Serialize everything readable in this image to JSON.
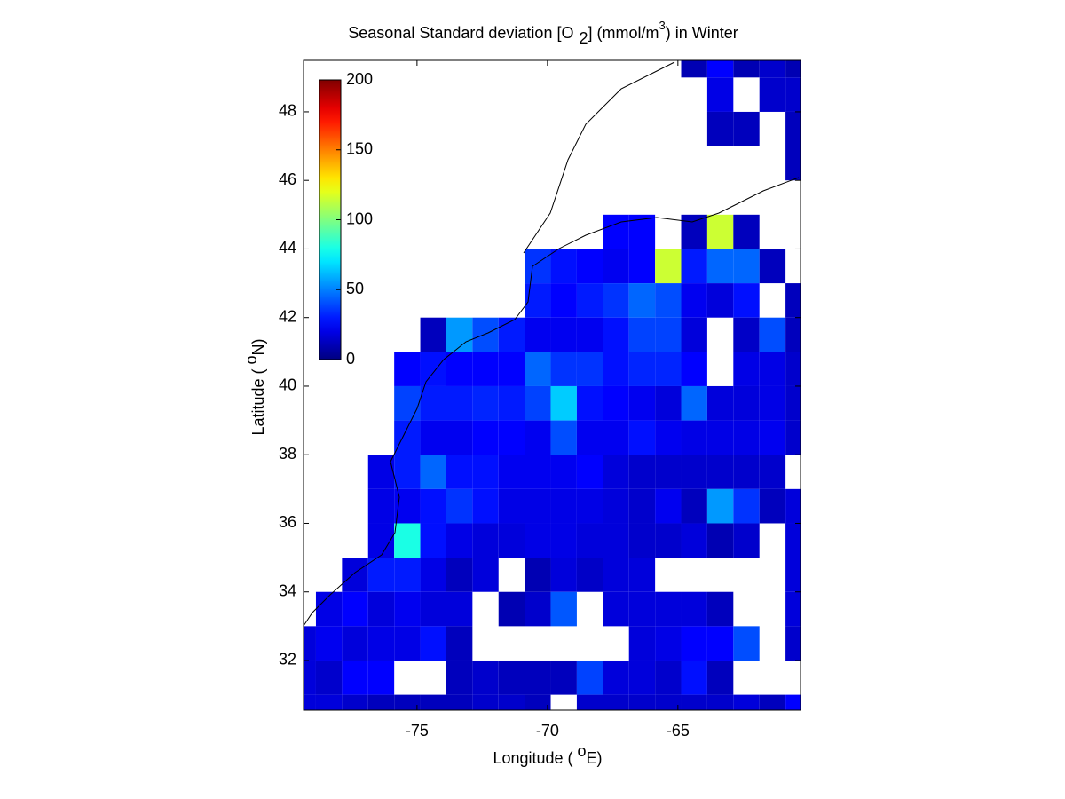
{
  "chart_data": {
    "type": "heatmap",
    "title": [
      "Seasonal Standard deviation [O",
      "2",
      "] (mmol/m",
      "3",
      ") in  Winter"
    ],
    "xlabel": [
      "Longitude ( ",
      "o",
      "E)"
    ],
    "ylabel": [
      "Latitude ( ",
      "o",
      "N)"
    ],
    "colormap": "jet",
    "x": [
      -79.375,
      -78.375,
      -77.375,
      -76.375,
      -75.375,
      -74.375,
      -73.375,
      -72.375,
      -71.375,
      -70.375,
      -69.375,
      -68.375,
      -67.375,
      -66.375,
      -65.375,
      -64.375,
      -63.375,
      -62.375,
      -61.375,
      -60.375
    ],
    "y": [
      49.5,
      48.5,
      47.5,
      46.5,
      45.5,
      44.5,
      43.5,
      42.5,
      41.5,
      40.5,
      39.5,
      38.5,
      37.5,
      36.5,
      35.5,
      34.5,
      33.5,
      32.5,
      31.5,
      30.5
    ],
    "values": [
      [
        null,
        null,
        null,
        null,
        null,
        null,
        null,
        null,
        null,
        null,
        null,
        null,
        null,
        null,
        null,
        10,
        25,
        10,
        15,
        10
      ],
      [
        null,
        null,
        null,
        null,
        null,
        null,
        null,
        null,
        null,
        null,
        null,
        null,
        null,
        null,
        null,
        null,
        20,
        null,
        15,
        15
      ],
      [
        null,
        null,
        null,
        null,
        null,
        null,
        null,
        null,
        null,
        null,
        null,
        null,
        null,
        null,
        null,
        null,
        12,
        12,
        null,
        12
      ],
      [
        null,
        null,
        null,
        null,
        null,
        null,
        null,
        null,
        null,
        null,
        null,
        null,
        null,
        null,
        null,
        null,
        null,
        null,
        null,
        12
      ],
      [
        null,
        null,
        null,
        null,
        null,
        null,
        null,
        null,
        null,
        null,
        null,
        null,
        null,
        null,
        null,
        null,
        null,
        null,
        null,
        null
      ],
      [
        null,
        null,
        null,
        null,
        null,
        null,
        null,
        null,
        null,
        null,
        null,
        null,
        25,
        25,
        null,
        12,
        115,
        12,
        null,
        null
      ],
      [
        null,
        null,
        null,
        null,
        null,
        null,
        null,
        null,
        null,
        35,
        28,
        25,
        22,
        25,
        115,
        30,
        45,
        45,
        12,
        null
      ],
      [
        null,
        null,
        null,
        null,
        null,
        null,
        null,
        null,
        null,
        30,
        25,
        30,
        35,
        45,
        40,
        22,
        18,
        28,
        null,
        12
      ],
      [
        null,
        null,
        null,
        null,
        null,
        12,
        55,
        40,
        30,
        22,
        22,
        22,
        28,
        38,
        38,
        18,
        null,
        14,
        40,
        12
      ],
      [
        null,
        null,
        null,
        null,
        25,
        28,
        25,
        25,
        25,
        45,
        35,
        35,
        28,
        32,
        32,
        25,
        null,
        20,
        20,
        15
      ],
      [
        null,
        null,
        null,
        null,
        38,
        30,
        30,
        32,
        30,
        38,
        65,
        28,
        25,
        22,
        18,
        45,
        18,
        18,
        20,
        15
      ],
      [
        null,
        null,
        null,
        null,
        30,
        22,
        22,
        25,
        25,
        22,
        40,
        22,
        22,
        28,
        22,
        20,
        20,
        20,
        22,
        15
      ],
      [
        null,
        null,
        null,
        20,
        30,
        45,
        28,
        28,
        22,
        22,
        22,
        25,
        18,
        15,
        15,
        15,
        15,
        15,
        15,
        null
      ],
      [
        null,
        null,
        null,
        20,
        22,
        28,
        35,
        28,
        20,
        20,
        20,
        20,
        18,
        15,
        22,
        12,
        55,
        35,
        12,
        18
      ],
      [
        null,
        null,
        null,
        20,
        80,
        28,
        20,
        18,
        18,
        20,
        20,
        18,
        18,
        15,
        15,
        18,
        10,
        15,
        null,
        18
      ],
      [
        null,
        null,
        18,
        30,
        30,
        20,
        12,
        18,
        null,
        10,
        18,
        14,
        18,
        18,
        null,
        null,
        null,
        null,
        null,
        18
      ],
      [
        null,
        20,
        25,
        18,
        22,
        18,
        18,
        null,
        10,
        15,
        42,
        null,
        18,
        18,
        18,
        18,
        12,
        null,
        null,
        18
      ],
      [
        18,
        22,
        18,
        20,
        20,
        28,
        12,
        null,
        null,
        null,
        null,
        null,
        null,
        18,
        20,
        25,
        25,
        40,
        null,
        15
      ],
      [
        18,
        15,
        25,
        25,
        null,
        null,
        12,
        15,
        12,
        12,
        12,
        38,
        18,
        18,
        15,
        28,
        12,
        null,
        null,
        null
      ],
      [
        18,
        18,
        15,
        12,
        12,
        12,
        12,
        15,
        15,
        12,
        null,
        15,
        15,
        15,
        15,
        15,
        15,
        18,
        12,
        25
      ]
    ],
    "xlim": [
      -79.35,
      -60.3
    ],
    "ylim": [
      30.55,
      49.5
    ],
    "xticks": [
      -75,
      -70,
      -65
    ],
    "yticks": [
      32,
      34,
      36,
      38,
      40,
      42,
      44,
      46,
      48
    ],
    "clim": [
      0,
      200
    ],
    "cticks": [
      0,
      50,
      100,
      150,
      200
    ]
  }
}
